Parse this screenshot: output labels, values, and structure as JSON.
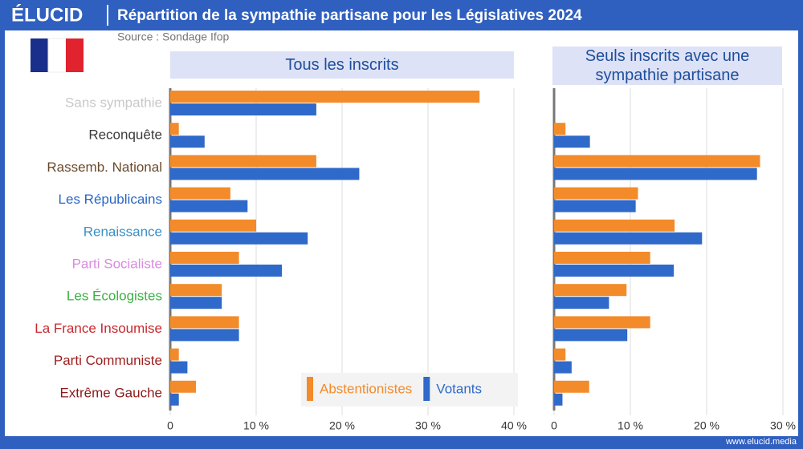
{
  "header": {
    "brand": "ÉLUCID",
    "title": "Répartition de la sympathie partisane pour les Législatives 2024",
    "source": "Source : Sondage Ifop"
  },
  "footer": "www.elucid.media",
  "chart_data": [
    {
      "type": "bar",
      "orientation": "horizontal",
      "title": "Tous les inscrits",
      "categories": [
        "Sans sympathie",
        "Reconquête",
        "Rassemb. National",
        "Les Républicains",
        "Renaissance",
        "Parti Socialiste",
        "Les Écologistes",
        "La France Insoumise",
        "Parti Communiste",
        "Extrême Gauche"
      ],
      "category_colors": [
        "#c8c8c8",
        "#3a3a3a",
        "#6b4a2a",
        "#2a66c4",
        "#3a90c8",
        "#d98ae0",
        "#3cb043",
        "#c8282d",
        "#a01c1c",
        "#8b1a1a"
      ],
      "series": [
        {
          "name": "Abstentionistes",
          "color": "#f38b2a",
          "values": [
            36,
            1,
            17,
            7,
            10,
            8,
            6,
            8,
            1,
            3
          ]
        },
        {
          "name": "Votants",
          "color": "#2f69c9",
          "values": [
            17,
            4,
            22,
            9,
            16,
            13,
            6,
            8,
            2,
            1
          ]
        }
      ],
      "xlim": [
        0,
        40
      ],
      "xticks": [
        0,
        {
          "value": 10,
          "label": "10 %"
        },
        {
          "value": 20,
          "label": "20 %"
        },
        {
          "value": 30,
          "label": "30 %"
        },
        {
          "value": 40,
          "label": "40 %"
        }
      ],
      "grid": true,
      "legend": "bottom-right"
    },
    {
      "type": "bar",
      "orientation": "horizontal",
      "title": "Seuls inscrits avec une sympathie partisane",
      "series": [
        {
          "color": "#f38b2a",
          "values": [
            null,
            1.5,
            27,
            11,
            15.8,
            12.6,
            9.5,
            12.6,
            1.5,
            4.6
          ]
        },
        {
          "color": "#2f69c9",
          "values": [
            null,
            4.7,
            26.6,
            10.7,
            19.4,
            15.7,
            7.2,
            9.6,
            2.3,
            1.1
          ]
        }
      ],
      "xlim": [
        0,
        30
      ],
      "xticks": [
        0,
        {
          "value": 10,
          "label": "10 %"
        },
        {
          "value": 20,
          "label": "20 %"
        },
        {
          "value": 30,
          "label": "30 %"
        }
      ],
      "grid": true
    }
  ]
}
